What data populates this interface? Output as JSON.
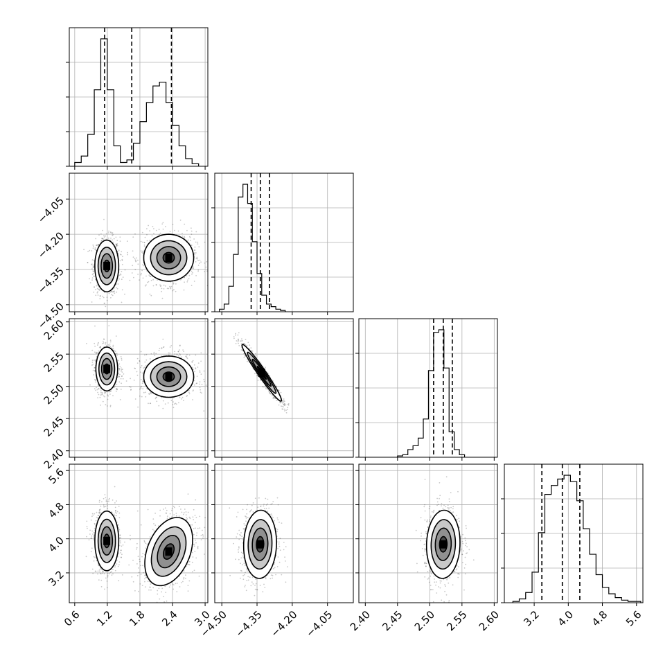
{
  "chart_data": {
    "type": "corner",
    "parameters": [
      {
        "range": [
          0.5,
          3.05
        ],
        "ticks": [
          0.6,
          1.2,
          1.8,
          2.4,
          3.0
        ],
        "tick_labels": [
          "0.6",
          "1.2",
          "1.8",
          "2.4",
          "3.0"
        ],
        "quantiles": [
          1.15,
          1.65,
          2.38
        ],
        "hist": {
          "start": 0.6,
          "width": 0.12,
          "counts": [
            0.03,
            0.08,
            0.25,
            0.6,
            1.0,
            0.6,
            0.16,
            0.03,
            0.05,
            0.18,
            0.35,
            0.5,
            0.63,
            0.66,
            0.5,
            0.32,
            0.16,
            0.06,
            0.02
          ]
        }
      },
      {
        "range": [
          -4.53,
          -3.94
        ],
        "ticks": [
          -4.5,
          -4.35,
          -4.2,
          -4.05
        ],
        "tick_labels": [
          "−4.50",
          "−4.35",
          "−4.20",
          "−4.05"
        ],
        "quantiles": [
          -4.375,
          -4.336,
          -4.297
        ],
        "hist": {
          "start": -4.51,
          "width": 0.02,
          "counts": [
            0.02,
            0.06,
            0.2,
            0.45,
            0.9,
            1.0,
            0.85,
            0.55,
            0.3,
            0.13,
            0.06,
            0.04,
            0.02,
            0.01
          ]
        }
      },
      {
        "range": [
          2.39,
          2.605
        ],
        "ticks": [
          2.4,
          2.45,
          2.5,
          2.55,
          2.6
        ],
        "tick_labels": [
          "2.40",
          "2.45",
          "2.50",
          "2.55",
          "2.60"
        ],
        "quantiles": [
          2.506,
          2.521,
          2.535
        ],
        "hist": {
          "start": 2.45,
          "width": 0.008,
          "counts": [
            0.01,
            0.02,
            0.06,
            0.09,
            0.15,
            0.3,
            0.68,
            0.98,
            1.0,
            0.7,
            0.2,
            0.06,
            0.02
          ]
        }
      },
      {
        "range": [
          2.5,
          5.75
        ],
        "ticks": [
          3.2,
          4.0,
          4.8,
          5.6
        ],
        "tick_labels": [
          "3.2",
          "4.0",
          "4.8",
          "5.6"
        ],
        "quantiles": [
          3.38,
          3.86,
          4.27
        ],
        "hist": {
          "start": 2.7,
          "width": 0.15,
          "counts": [
            0.01,
            0.03,
            0.08,
            0.24,
            0.55,
            0.85,
            0.92,
            0.97,
            1.0,
            0.95,
            0.8,
            0.58,
            0.38,
            0.22,
            0.12,
            0.07,
            0.04,
            0.02,
            0.01,
            0.01
          ]
        }
      }
    ],
    "contours_2d": [
      {
        "row": 1,
        "col": 0,
        "modes": [
          {
            "cx": 1.19,
            "cy": -4.335,
            "sx": 0.11,
            "sy": 0.055,
            "rho": 0.0
          },
          {
            "cx": 2.33,
            "cy": -4.3,
            "sx": 0.23,
            "sy": 0.05,
            "rho": 0.0
          }
        ]
      },
      {
        "row": 2,
        "col": 0,
        "modes": [
          {
            "cx": 1.19,
            "cy": 2.527,
            "sx": 0.1,
            "sy": 0.017,
            "rho": 0.0
          },
          {
            "cx": 2.33,
            "cy": 2.515,
            "sx": 0.23,
            "sy": 0.016,
            "rho": 0.0
          }
        ]
      },
      {
        "row": 2,
        "col": 1,
        "modes": [
          {
            "cx": -4.33,
            "cy": 2.521,
            "sx": 0.042,
            "sy": 0.022,
            "rho": -0.97
          }
        ]
      },
      {
        "row": 3,
        "col": 0,
        "modes": [
          {
            "cx": 1.19,
            "cy": 3.95,
            "sx": 0.11,
            "sy": 0.35,
            "rho": 0.0
          },
          {
            "cx": 2.33,
            "cy": 3.7,
            "sx": 0.22,
            "sy": 0.4,
            "rho": 0.35
          }
        ]
      },
      {
        "row": 3,
        "col": 1,
        "modes": [
          {
            "cx": -4.337,
            "cy": 3.87,
            "sx": 0.035,
            "sy": 0.4,
            "rho": 0.05
          }
        ]
      },
      {
        "row": 3,
        "col": 2,
        "modes": [
          {
            "cx": 2.521,
            "cy": 3.87,
            "sx": 0.013,
            "sy": 0.4,
            "rho": 0.05
          }
        ]
      }
    ]
  }
}
